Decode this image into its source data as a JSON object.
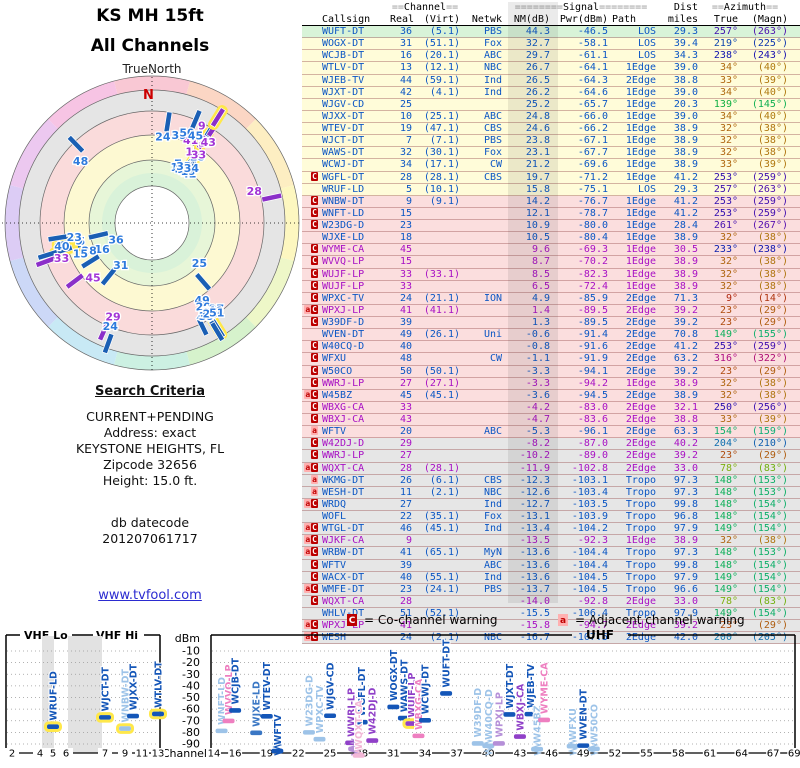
{
  "radar": {
    "title1": "KS MH 15ft",
    "title2": "All Channels",
    "north_label": "TrueNorth",
    "north_letter": "N"
  },
  "criteria": {
    "heading": "Search Criteria",
    "lines": [
      "CURRENT+PENDING",
      "Address: exact",
      "KEYSTONE HEIGHTS, FL",
      "Zipcode 32656",
      "Height: 15.0 ft."
    ],
    "db_label": "db datecode",
    "db_code": "201207061717",
    "link": "www.tvfool.com"
  },
  "legend": {
    "c_badge": "C",
    "c_text": "= Co-channel warning",
    "a_badge": "a",
    "a_text": "= Adjacent channel warning"
  },
  "table_header": {
    "channel_pre": "==",
    "channel": "Channel",
    "channel_post": "==",
    "signal_pre": "========",
    "signal": "Signal",
    "signal_post": "========",
    "dist": "Dist",
    "azimuth_pre": "==",
    "azimuth": "Azimuth",
    "azimuth_post": "==",
    "cols": [
      "Callsign",
      "Real",
      "(Virt)",
      "Netwk",
      "NM(dB)",
      "Pwr(dBm)",
      "Path",
      "miles",
      "True",
      "(Magn)"
    ]
  },
  "chart_data": {
    "type": "table",
    "title": "KS MH 15ft - All Channels",
    "columns": [
      "warnings",
      "callsign",
      "real_ch",
      "virt_ch",
      "network",
      "nm_db",
      "pwr_dbm",
      "path",
      "dist_miles",
      "az_true_deg",
      "az_magn_deg",
      "analog",
      "zone",
      "radar_halo"
    ],
    "zone_meaning": {
      "g": "green-strong",
      "y": "yellow",
      "p": "pink",
      "e": "gray-weak"
    },
    "rows": [
      [
        "",
        "WUFT-DT",
        36,
        "(5.1)",
        "PBS",
        44.3,
        -46.5,
        "LOS",
        29.3,
        257,
        263,
        0,
        "g",
        0
      ],
      [
        "",
        "WOGX-DT",
        31,
        "(51.1)",
        "Fox",
        32.7,
        -58.1,
        "LOS",
        39.4,
        219,
        225,
        0,
        "y",
        0
      ],
      [
        "",
        "WCJB-DT",
        16,
        "(20.1)",
        "ABC",
        29.7,
        -61.1,
        "LOS",
        34.3,
        238,
        243,
        0,
        "y",
        0
      ],
      [
        "",
        "WTLV-DT",
        13,
        "(12.1)",
        "NBC",
        26.7,
        -64.1,
        "1Edge",
        39.0,
        34,
        40,
        0,
        "y",
        0
      ],
      [
        "",
        "WJEB-TV",
        44,
        "(59.1)",
        "Ind",
        26.5,
        -64.3,
        "2Edge",
        38.8,
        33,
        39,
        0,
        "y",
        1
      ],
      [
        "",
        "WJXT-DT",
        42,
        "(4.1)",
        "Ind",
        26.2,
        -64.6,
        "1Edge",
        39.0,
        34,
        40,
        0,
        "y",
        1
      ],
      [
        "",
        "WJGV-CD",
        25,
        "",
        "",
        25.2,
        -65.7,
        "1Edge",
        20.3,
        139,
        145,
        0,
        "y",
        0
      ],
      [
        "",
        "WJXX-DT",
        10,
        "(25.1)",
        "ABC",
        24.8,
        -66.0,
        "1Edge",
        39.0,
        34,
        40,
        0,
        "y",
        0
      ],
      [
        "",
        "WTEV-DT",
        19,
        "(47.1)",
        "CBS",
        24.6,
        -66.2,
        "1Edge",
        38.9,
        32,
        38,
        0,
        "y",
        0
      ],
      [
        "",
        "WJCT-DT",
        7,
        "(7.1)",
        "PBS",
        23.8,
        -67.1,
        "1Edge",
        38.9,
        32,
        38,
        0,
        "y",
        0
      ],
      [
        "",
        "WAWS-DT",
        32,
        "(30.1)",
        "Fox",
        23.1,
        -67.7,
        "1Edge",
        38.9,
        32,
        38,
        0,
        "y",
        0
      ],
      [
        "",
        "WCWJ-DT",
        34,
        "(17.1)",
        "CW",
        21.2,
        -69.6,
        "1Edge",
        38.9,
        33,
        39,
        0,
        "y",
        0
      ],
      [
        "C",
        "WGFL-DT",
        28,
        "(28.1)",
        "CBS",
        19.7,
        -71.2,
        "1Edge",
        41.2,
        253,
        259,
        0,
        "y",
        1
      ],
      [
        "",
        "WRUF-LD",
        5,
        "(10.1)",
        "",
        15.8,
        -75.1,
        "LOS",
        29.3,
        257,
        263,
        0,
        "y",
        1
      ],
      [
        "C",
        "WNBW-DT",
        9,
        "(9.1)",
        "",
        14.2,
        -76.7,
        "1Edge",
        41.2,
        253,
        259,
        0,
        "p",
        1
      ],
      [
        "C",
        "WNFT-LD",
        15,
        "",
        "",
        12.1,
        -78.7,
        "1Edge",
        41.2,
        253,
        259,
        0,
        "p",
        1
      ],
      [
        "C",
        "W23DG-D",
        23,
        "",
        "",
        10.9,
        -80.0,
        "1Edge",
        28.4,
        261,
        267,
        0,
        "p",
        0
      ],
      [
        "",
        "WJXE-LD",
        18,
        "",
        "",
        10.5,
        -80.4,
        "1Edge",
        38.9,
        32,
        38,
        0,
        "p",
        0
      ],
      [
        "C",
        "WYME-CA",
        45,
        "",
        "",
        9.6,
        -69.3,
        "1Edge",
        30.5,
        233,
        238,
        1,
        "p",
        0
      ],
      [
        "C",
        "WVVQ-LP",
        15,
        "",
        "",
        8.7,
        -70.2,
        "1Edge",
        38.9,
        32,
        38,
        1,
        "p",
        0
      ],
      [
        "C",
        "WUJF-LP",
        33,
        "(33.1)",
        "",
        8.5,
        -82.3,
        "1Edge",
        38.9,
        32,
        38,
        1,
        "p",
        1
      ],
      [
        "C",
        "WUJF-LP",
        33,
        "",
        "",
        6.5,
        -72.4,
        "1Edge",
        38.9,
        32,
        38,
        1,
        "p",
        0
      ],
      [
        "C",
        "WPXC-TV",
        24,
        "(21.1)",
        "ION",
        4.9,
        -85.9,
        "2Edge",
        71.3,
        9,
        14,
        0,
        "p",
        0
      ],
      [
        "aC",
        "WPXJ-LP",
        41,
        "(41.1)",
        "",
        1.4,
        -89.5,
        "2Edge",
        39.2,
        23,
        29,
        1,
        "p",
        0
      ],
      [
        "C",
        "W39DF-D",
        39,
        "",
        "",
        1.3,
        -89.5,
        "2Edge",
        39.2,
        23,
        29,
        0,
        "p",
        0
      ],
      [
        "",
        "WVEN-DT",
        49,
        "(26.1)",
        "Uni",
        -0.6,
        -91.4,
        "2Edge",
        70.8,
        149,
        155,
        0,
        "p",
        0
      ],
      [
        "C",
        "W40CQ-D",
        40,
        "",
        "",
        -0.8,
        -91.6,
        "2Edge",
        41.2,
        253,
        259,
        0,
        "p",
        0
      ],
      [
        "C",
        "WFXU",
        48,
        "",
        "CW",
        -1.1,
        -91.9,
        "2Edge",
        63.2,
        316,
        322,
        0,
        "p",
        0
      ],
      [
        "C",
        "W50CO",
        50,
        "(50.1)",
        "",
        -3.3,
        -94.1,
        "2Edge",
        39.2,
        23,
        29,
        0,
        "p",
        0
      ],
      [
        "C",
        "WWRJ-LP",
        27,
        "(27.1)",
        "",
        -3.3,
        -94.2,
        "1Edge",
        38.9,
        32,
        38,
        1,
        "p",
        0
      ],
      [
        "aC",
        "W45BZ",
        45,
        "(45.1)",
        "",
        -3.6,
        -94.5,
        "2Edge",
        38.9,
        32,
        38,
        0,
        "p",
        0
      ],
      [
        "C",
        "WBXG-CA",
        33,
        "",
        "",
        -4.2,
        -83.0,
        "2Edge",
        32.1,
        250,
        256,
        1,
        "p",
        0
      ],
      [
        "C",
        "WBXJ-CA",
        43,
        "",
        "",
        -4.7,
        -83.6,
        "2Edge",
        38.8,
        33,
        39,
        1,
        "p",
        0
      ],
      [
        "a",
        "WFTV",
        20,
        "",
        "ABC",
        -5.3,
        -96.1,
        "2Edge",
        63.3,
        154,
        159,
        0,
        "p",
        0
      ],
      [
        "C",
        "W42DJ-D",
        29,
        "",
        "",
        -8.2,
        -87.0,
        "2Edge",
        40.2,
        204,
        210,
        1,
        "e",
        0
      ],
      [
        "C",
        "WWRJ-LP",
        27,
        "",
        "",
        -10.2,
        -89.0,
        "2Edge",
        39.2,
        23,
        29,
        1,
        "e",
        0
      ],
      [
        "aC",
        "WQXT-CA",
        28,
        "(28.1)",
        "",
        -11.9,
        -102.8,
        "2Edge",
        33.0,
        78,
        83,
        1,
        "e",
        0
      ],
      [
        "a",
        "WKMG-DT",
        26,
        "(6.1)",
        "CBS",
        -12.3,
        -103.1,
        "Tropo",
        97.3,
        148,
        153,
        0,
        "e",
        1
      ],
      [
        "a",
        "WESH-DT",
        11,
        "(2.1)",
        "NBC",
        -12.6,
        -103.4,
        "Tropo",
        97.3,
        148,
        153,
        0,
        "e",
        1
      ],
      [
        "aC",
        "WRDQ",
        27,
        "",
        "Ind",
        -12.7,
        -103.5,
        "Tropo",
        99.8,
        148,
        154,
        0,
        "e",
        0
      ],
      [
        "",
        "WOFL",
        22,
        "(35.1)",
        "Fox",
        -13.1,
        -103.9,
        "Tropo",
        96.8,
        148,
        154,
        0,
        "e",
        0
      ],
      [
        "aC",
        "WTGL-DT",
        46,
        "(45.1)",
        "Ind",
        -13.4,
        -104.2,
        "Tropo",
        97.9,
        149,
        154,
        0,
        "e",
        0
      ],
      [
        "aC",
        "WJKF-CA",
        9,
        "",
        "",
        -13.5,
        -92.3,
        "1Edge",
        38.9,
        32,
        38,
        1,
        "e",
        1
      ],
      [
        "aC",
        "WRBW-DT",
        41,
        "(65.1)",
        "MyN",
        -13.6,
        -104.4,
        "Tropo",
        97.3,
        148,
        153,
        0,
        "e",
        0
      ],
      [
        "C",
        "WFTV",
        39,
        "",
        "ABC",
        -13.6,
        -104.4,
        "Tropo",
        99.8,
        148,
        154,
        0,
        "e",
        0
      ],
      [
        "C",
        "WACX-DT",
        40,
        "(55.1)",
        "Ind",
        -13.6,
        -104.5,
        "Tropo",
        97.9,
        149,
        154,
        0,
        "e",
        0
      ],
      [
        "aC",
        "WMFE-DT",
        23,
        "(24.1)",
        "PBS",
        -13.7,
        -104.5,
        "Tropo",
        96.6,
        149,
        154,
        0,
        "e",
        0
      ],
      [
        "C",
        "WQXT-CA",
        28,
        "",
        "",
        -14.0,
        -92.8,
        "2Edge",
        33.0,
        78,
        83,
        1,
        "e",
        0
      ],
      [
        "",
        "WHLV-DT",
        51,
        "(52.1)",
        "",
        -15.5,
        -106.4,
        "Tropo",
        97.9,
        149,
        154,
        0,
        "e",
        0
      ],
      [
        "aC",
        "WPXJ-LP",
        41,
        "",
        "",
        -15.8,
        -94.7,
        "2Edge",
        39.2,
        23,
        29,
        1,
        "e",
        0
      ],
      [
        "aC",
        "WESH",
        24,
        "(2.1)",
        "NBC",
        -16.7,
        -107.5,
        "2Edge",
        42.0,
        200,
        205,
        0,
        "e",
        0
      ]
    ],
    "spectrum": {
      "type": "bar",
      "ylabel": "dBm",
      "xlabel": "Channel",
      "ylim": [
        -95,
        -5
      ],
      "dbm_ticks": [
        -10,
        -20,
        -30,
        -40,
        -50,
        -60,
        -70,
        -80,
        -90
      ],
      "vhf_lo_label": "VHF Lo",
      "vhf_hi_label": "VHF Hi",
      "uhf_label": "UHF",
      "vhf_ticks": [
        2,
        4,
        5,
        6,
        7,
        9,
        11,
        13
      ],
      "uhf_ticks": [
        14,
        16,
        19,
        22,
        25,
        28,
        31,
        34,
        37,
        40,
        43,
        46,
        49,
        52,
        55,
        58,
        61,
        64,
        67,
        69
      ],
      "bars": [
        {
          "ch": 5,
          "call": "WRUF-LD",
          "dbm": -75.1,
          "color": "#1456b8",
          "halo": 1
        },
        {
          "ch": 7,
          "call": "WJCT-DT",
          "dbm": -67.1,
          "color": "#1456b8",
          "halo": 1
        },
        {
          "ch": 9,
          "call": "WNBW-DT",
          "dbm": -76.7,
          "color": "#9dc3e8",
          "halo": 1
        },
        {
          "ch": 10,
          "call": "WJXX-DT",
          "dbm": -66.0,
          "color": "#1456b8"
        },
        {
          "ch": 13,
          "call": "WTLV-DT",
          "dbm": -64.1,
          "color": "#1456b8",
          "halo": 1
        },
        {
          "ch": 15,
          "call": "WNFT-LD",
          "dbm": -78.7,
          "color": "#9dc3e8",
          "dx": -3
        },
        {
          "ch": 15,
          "call": "WVVQ-LP",
          "dbm": -70.2,
          "color": "#ee7fc0",
          "dx": 4
        },
        {
          "ch": 16,
          "call": "WCJB-DT",
          "dbm": -61.1,
          "color": "#1456b8"
        },
        {
          "ch": 18,
          "call": "WJXE-LD",
          "dbm": -80.4,
          "color": "#3a77c4"
        },
        {
          "ch": 19,
          "call": "WTEV-DT",
          "dbm": -66.2,
          "color": "#1456b8"
        },
        {
          "ch": 20,
          "call": "WFTV",
          "dbm": -96.1,
          "color": "#1456b8"
        },
        {
          "ch": 23,
          "call": "W23DG-D",
          "dbm": -80.0,
          "color": "#9dc3e8"
        },
        {
          "ch": 24,
          "call": "WPXC-TV",
          "dbm": -85.9,
          "color": "#9dc3e8"
        },
        {
          "ch": 25,
          "call": "WJGV-CD",
          "dbm": -65.7,
          "color": "#1456b8"
        },
        {
          "ch": 27,
          "call": "WWRJ-LP",
          "dbm": -89.0,
          "color": "#9040c8"
        },
        {
          "ch": 27,
          "call": "",
          "dbm": -94.2,
          "color": "#b58fd8",
          "dx": 3
        },
        {
          "ch": 28,
          "call": "WGFL-DT",
          "dbm": -71.2,
          "color": "#1456b8"
        },
        {
          "ch": 28,
          "call": "WQXT-CA",
          "dbm": -102.8,
          "color": "#f2b7d6",
          "dx": -3
        },
        {
          "ch": 29,
          "call": "W42DJ-D",
          "dbm": -87.0,
          "color": "#9040c8"
        },
        {
          "ch": 31,
          "call": "WOGX-DT",
          "dbm": -58.1,
          "color": "#1456b8"
        },
        {
          "ch": 32,
          "call": "WAWS-DT",
          "dbm": -67.7,
          "color": "#1456b8"
        },
        {
          "ch": 33,
          "call": "WUJF-LP",
          "dbm": -72.4,
          "color": "#9040c8",
          "halo": 1,
          "dx": -3
        },
        {
          "ch": 33,
          "call": "WBXG-CA",
          "dbm": -83.0,
          "color": "#ee7fc0",
          "dx": 4
        },
        {
          "ch": 34,
          "call": "WCWJ-DT",
          "dbm": -69.6,
          "color": "#1456b8"
        },
        {
          "ch": 36,
          "call": "WUFT-DT",
          "dbm": -46.5,
          "color": "#1456b8"
        },
        {
          "ch": 39,
          "call": "W39DF-D",
          "dbm": -89.5,
          "color": "#9dc3e8"
        },
        {
          "ch": 40,
          "call": "W40CQ-D",
          "dbm": -91.6,
          "color": "#9dc3e8"
        },
        {
          "ch": 41,
          "call": "WPXJ-LP",
          "dbm": -89.5,
          "color": "#b58fd8"
        },
        {
          "ch": 42,
          "call": "WJXT-DT",
          "dbm": -64.6,
          "color": "#1456b8"
        },
        {
          "ch": 43,
          "call": "WBXJ-CA",
          "dbm": -83.6,
          "color": "#9040c8"
        },
        {
          "ch": 44,
          "call": "WJEB-TV",
          "dbm": -64.3,
          "color": "#1456b8"
        },
        {
          "ch": 45,
          "call": "W45BZ",
          "dbm": -94.5,
          "color": "#9dc3e8",
          "dx": -4
        },
        {
          "ch": 45,
          "call": "WYME-CA",
          "dbm": -69.3,
          "color": "#ee7fc0",
          "dx": 3
        },
        {
          "ch": 48,
          "call": "WFXU",
          "dbm": -91.9,
          "color": "#9dc3e8"
        },
        {
          "ch": 49,
          "call": "WVEN-DT",
          "dbm": -91.4,
          "color": "#1456b8"
        },
        {
          "ch": 50,
          "call": "W50CO",
          "dbm": -94.1,
          "color": "#9dc3e8"
        }
      ]
    }
  }
}
